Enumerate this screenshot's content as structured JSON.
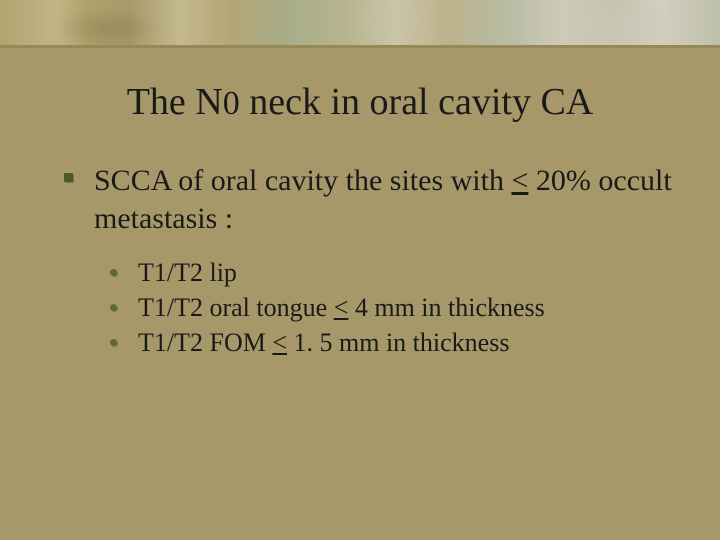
{
  "colors": {
    "background": "#a69869",
    "title_text": "#1a1a1a",
    "body_text": "#1a1a1a",
    "main_bullet": "#4a5a2a",
    "sub_bullet": "#5a6a35",
    "accent_divider": "#968856"
  },
  "typography": {
    "font_family": "Times New Roman",
    "title_fontsize": 38,
    "title_sub_fontsize": 34,
    "main_fontsize": 30,
    "sub_fontsize": 26
  },
  "title": {
    "pre": "The N",
    "sub": "0",
    "post": " neck in oral cavity CA"
  },
  "main": {
    "text_pre": "SCCA of oral cavity the sites with ",
    "lt": "<",
    "text_post": "  20% occult metastasis :"
  },
  "subitems": [
    {
      "text": "T1/T2 lip"
    },
    {
      "pre": "T1/T2 oral tongue  ",
      "lt": "<",
      "post": " 4 mm in thickness"
    },
    {
      "pre": "T1/T2 FOM  ",
      "lt": "<",
      "post": " 1. 5 mm in thickness"
    }
  ]
}
